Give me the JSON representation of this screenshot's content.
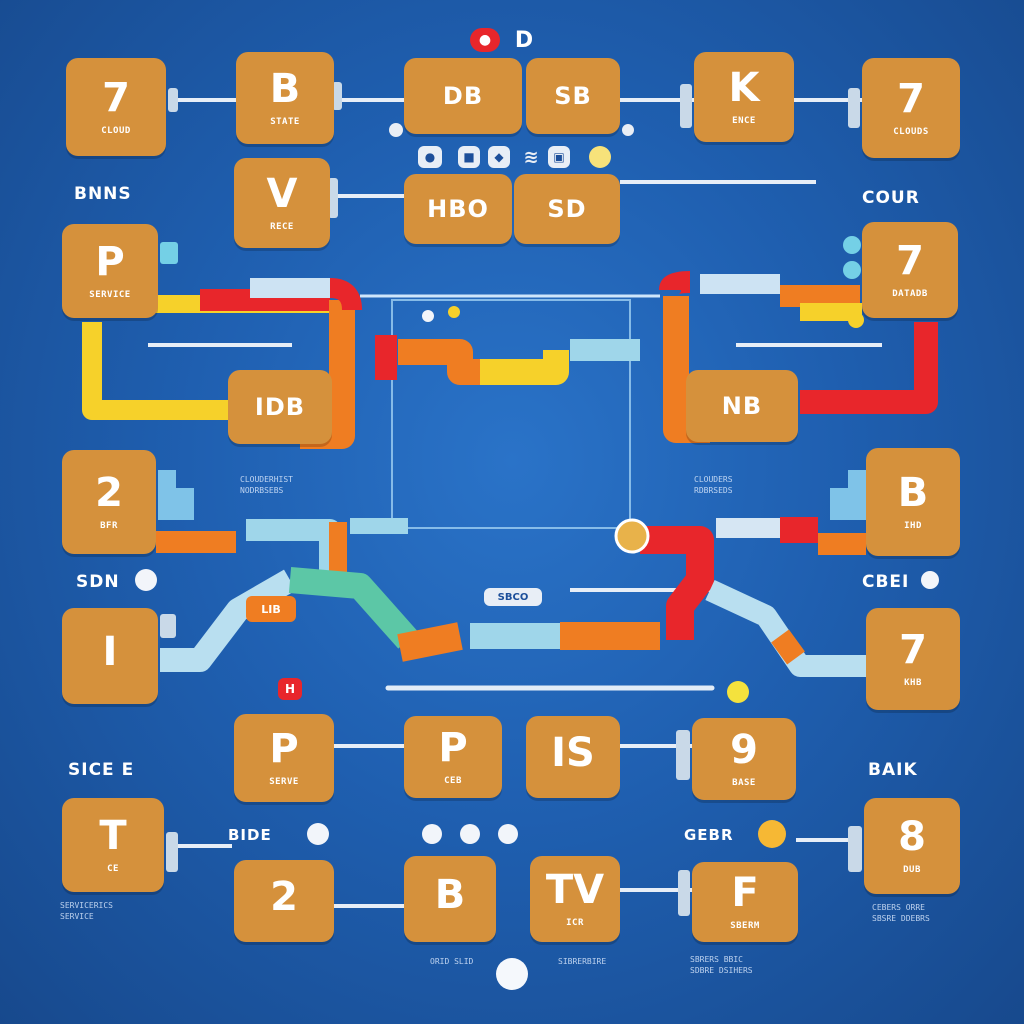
{
  "colors": {
    "background": "#1f5fb0",
    "tile": "#d5913c",
    "pipe_red": "#e8262b",
    "pipe_orange": "#ef7d22",
    "pipe_yellow": "#f6d12a",
    "pipe_light": "#9fd6ea",
    "pipe_green": "#5cc7a6"
  },
  "top_badge": {
    "left": "●",
    "right": "D"
  },
  "tiles": [
    {
      "big": "7",
      "small": "CLOUD"
    },
    {
      "big": "B",
      "small": "STATE"
    },
    {
      "big": "",
      "mid": "DB"
    },
    {
      "big": "",
      "mid": "SB"
    },
    {
      "big": "K",
      "small": "ENCE"
    },
    {
      "big": "7",
      "small": "CLOUDS"
    },
    {
      "big": "V",
      "small": "RECE"
    },
    {
      "big": "",
      "mid": "HBO"
    },
    {
      "big": "",
      "mid": "SD"
    },
    {
      "big": "P",
      "small": "SERVICE"
    },
    {
      "big": "7",
      "small": "DATADB"
    },
    {
      "big": "",
      "mid": "IDB"
    },
    {
      "big": "",
      "mid": "NB"
    },
    {
      "big": "2",
      "small": "BFR"
    },
    {
      "big": "B",
      "small": "IHD"
    },
    {
      "big": "I",
      "small": ""
    },
    {
      "big": "7",
      "small": "KHB"
    },
    {
      "big": "P",
      "small": "SERVE"
    },
    {
      "big": "P",
      "small": "CEB"
    },
    {
      "big": "IS",
      "small": ""
    },
    {
      "big": "9",
      "small": "BASE"
    },
    {
      "big": "T",
      "small": "CE"
    },
    {
      "big": "8",
      "small": "DUB"
    },
    {
      "big": "2",
      "small": ""
    },
    {
      "big": "B",
      "small": ""
    },
    {
      "big": "TV",
      "small": "ICR"
    },
    {
      "big": "F",
      "small": "SBERM"
    }
  ],
  "labels": {
    "left_1": "BNNS",
    "right_1": "COUR",
    "left_2": "SDN",
    "right_2": "CBEI",
    "left_3": "SICE E",
    "right_3": "BAIK",
    "left_4": "BIDE",
    "right_4": "GEBR",
    "center_chip": "SBCO",
    "orange_chip": "LIB",
    "red_marker": "H"
  },
  "captions": {
    "left_mid": "CLOUDERHIST\nNODRBSEBS",
    "right_mid": "CLOUDERS\nRDBRSEDS",
    "bottom_left": "SERVICERICS\nSERVICE",
    "bottom_center": "ORID SLID",
    "bottom_center_right": "SIBRERBIRE",
    "bottom_right": "CEBERS ORRE\nSBSRE DDEBRS",
    "bottom_right2": "SBRERS BBIC\nSDBRE DSIHERS"
  }
}
